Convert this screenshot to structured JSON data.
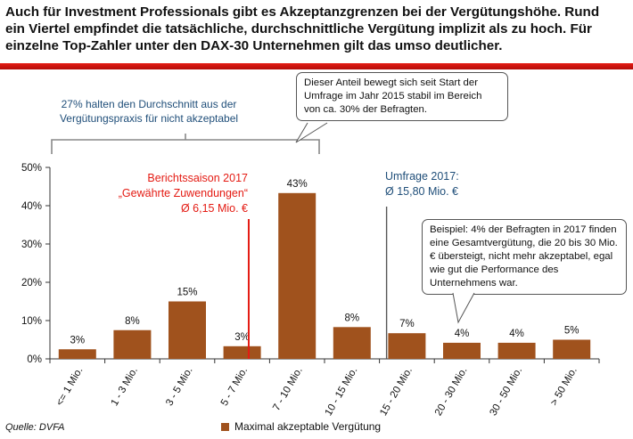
{
  "header": {
    "title": "Auch für Investment Professionals gibt es Akzeptanzgrenzen bei der Vergütungshöhe. Rund ein Viertel empfindet die tatsächliche, durchschnittliche Vergütung implizit als zu hoch. Für einzelne Top-Zahler unter den DAX-30 Unternehmen gilt das umso deutlicher."
  },
  "annotations": {
    "bracket_note": "27% halten den Durchschnitt aus der Vergütungspraxis für nicht akzeptabel",
    "callout_top": "Dieser Anteil bewegt sich seit Start der Umfrage im Jahr 2015 stabil im Bereich von ca. 30% der Befragten.",
    "berichtssaison_l1": "Berichtssaison 2017",
    "berichtssaison_l2": "„Gewährte Zuwendungen“",
    "berichtssaison_l3": "Ø 6,15 Mio. €",
    "umfrage_l1": "Umfrage 2017:",
    "umfrage_l2": "Ø 15,80 Mio. €",
    "callout_example": "Beispiel: 4% der Befragten in 2017 finden eine Gesamtvergütung, die 20 bis 30 Mio. € übersteigt, nicht mehr akzeptabel, egal wie gut die Performance des Unternehmens war."
  },
  "footer": {
    "source": "Quelle: DVFA"
  },
  "colors": {
    "bar": "#a0521d",
    "accent_red": "#e41b13",
    "accent_blue": "#1f4e79"
  },
  "chart_data": {
    "type": "bar",
    "categories": [
      "<= 1 Mio.",
      "1 - 3 Mio.",
      "3 - 5 Mio.",
      "5 - 7 Mio.",
      "7 - 10 Mio.",
      "10 - 15 Mio.",
      "15 - 20 Mio.",
      "20 - 30 Mio.",
      "30 - 50 Mio.",
      "> 50 Mio."
    ],
    "series": [
      {
        "name": "Maximal akzeptable Vergütung",
        "values": [
          2.5,
          7.5,
          15,
          3.3,
          43.3,
          8.3,
          6.7,
          4.2,
          4.2,
          5
        ],
        "labels": [
          "3%",
          "8%",
          "15%",
          "3%",
          "43%",
          "8%",
          "7%",
          "4%",
          "4%",
          "5%"
        ]
      }
    ],
    "yticks": [
      "0%",
      "10%",
      "20%",
      "30%",
      "40%",
      "50%"
    ],
    "ylim": [
      0,
      50
    ],
    "grid": false,
    "legend": "bottom",
    "markers": [
      {
        "name": "Berichtssaison 2017",
        "value_mio_eur": 6.15,
        "category_index": 3
      },
      {
        "name": "Umfrage 2017",
        "value_mio_eur": 15.8,
        "category_index": 6
      }
    ]
  }
}
